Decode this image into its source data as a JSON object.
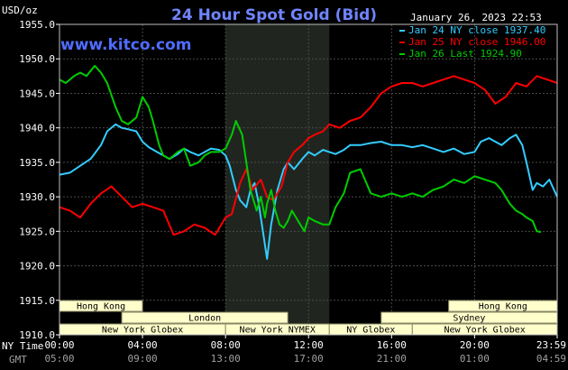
{
  "chart_data": {
    "type": "line",
    "title": "24 Hour Spot Gold (Bid)",
    "y_unit_label": "USD/oz",
    "date_label": "January 26, 2023 22:53",
    "watermark": "www.kitco.com",
    "ylim": [
      1910,
      1955
    ],
    "y_ticks": [
      "1955.0",
      "1950.0",
      "1945.0",
      "1940.0",
      "1935.0",
      "1930.0",
      "1925.0",
      "1920.0",
      "1915.0",
      "1910.0"
    ],
    "x_ticks_ny": [
      "00:00",
      "04:00",
      "08:00",
      "12:00",
      "16:00",
      "20:00",
      "23:59"
    ],
    "x_ticks_gmt": [
      "05:00",
      "09:00",
      "13:00",
      "17:00",
      "21:00",
      "01:00",
      "04:59"
    ],
    "x_label_ny": "NY Time",
    "x_label_gmt": "GMT",
    "highlight_window_hours": [
      8.0,
      13.0
    ],
    "sessions": [
      {
        "label": "Hong Kong",
        "start": 0.0,
        "end": 4.0,
        "row": 0
      },
      {
        "label": "Hong Kong",
        "start": 18.75,
        "end": 23.98,
        "row": 0
      },
      {
        "label": "London",
        "start": 3.0,
        "end": 11.0,
        "row": 1
      },
      {
        "label": "Sydney",
        "start": 15.5,
        "end": 23.98,
        "row": 1
      },
      {
        "label": "New York Globex",
        "start": 0.0,
        "end": 8.0,
        "row": 2
      },
      {
        "label": "New York NYMEX",
        "start": 8.0,
        "end": 13.0,
        "row": 2
      },
      {
        "label": "NY Globex",
        "start": 13.0,
        "end": 17.0,
        "row": 2
      },
      {
        "label": "New York Globex",
        "start": 17.0,
        "end": 23.98,
        "row": 2
      }
    ],
    "series": [
      {
        "name": "Jan 24 NY close 1937.40",
        "color": "#33ccff",
        "x": [
          0,
          0.5,
          1,
          1.5,
          2,
          2.3,
          2.7,
          3,
          3.3,
          3.7,
          4,
          4.3,
          4.7,
          5,
          5.3,
          5.7,
          6,
          6.3,
          6.7,
          7,
          7.3,
          7.7,
          8,
          8.2,
          8.5,
          8.7,
          9,
          9.2,
          9.4,
          9.6,
          9.8,
          10,
          10.2,
          10.5,
          10.8,
          11,
          11.3,
          11.7,
          12,
          12.3,
          12.7,
          13,
          13.3,
          13.7,
          14,
          14.5,
          15,
          15.5,
          16,
          16.5,
          17,
          17.5,
          18,
          18.5,
          19,
          19.5,
          20,
          20.3,
          20.7,
          21,
          21.3,
          21.7,
          22,
          22.3,
          22.5,
          22.8,
          23,
          23.3,
          23.6,
          23.98
        ],
        "y": [
          1933.2,
          1933.5,
          1934.5,
          1935.5,
          1937.5,
          1939.5,
          1940.5,
          1940.0,
          1939.8,
          1939.5,
          1938.0,
          1937.2,
          1936.5,
          1936.0,
          1935.5,
          1936.2,
          1937.0,
          1936.5,
          1936.0,
          1936.5,
          1937.0,
          1936.8,
          1936.0,
          1934.5,
          1931.0,
          1929.5,
          1928.5,
          1931.0,
          1932.0,
          1929.0,
          1925.0,
          1921.0,
          1926.0,
          1931.0,
          1934.0,
          1935.0,
          1934.0,
          1935.5,
          1936.5,
          1936.0,
          1936.8,
          1936.5,
          1936.2,
          1936.8,
          1937.5,
          1937.5,
          1937.8,
          1938.0,
          1937.5,
          1937.5,
          1937.2,
          1937.5,
          1937.0,
          1936.5,
          1937.0,
          1936.2,
          1936.5,
          1938.0,
          1938.5,
          1938.0,
          1937.5,
          1938.5,
          1939.0,
          1937.5,
          1935.0,
          1931.0,
          1932.0,
          1931.5,
          1932.5,
          1930.0
        ]
      },
      {
        "name": "Jan 25 NY close 1946.00",
        "color": "#ff0000",
        "x": [
          0,
          0.5,
          1,
          1.5,
          2,
          2.5,
          3,
          3.5,
          4,
          4.5,
          5,
          5.5,
          6,
          6.5,
          7,
          7.5,
          8,
          8.3,
          8.7,
          9,
          9.3,
          9.7,
          10,
          10.3,
          10.7,
          11,
          11.3,
          11.7,
          12,
          12.3,
          12.7,
          13,
          13.5,
          14,
          14.5,
          15,
          15.5,
          16,
          16.5,
          17,
          17.5,
          18,
          18.5,
          19,
          19.5,
          20,
          20.5,
          21,
          21.5,
          22,
          22.5,
          23,
          23.5,
          23.98
        ],
        "y": [
          1928.5,
          1928.0,
          1927.0,
          1929.0,
          1930.5,
          1931.5,
          1930.0,
          1928.5,
          1929.0,
          1928.5,
          1928.0,
          1924.5,
          1925.0,
          1926.0,
          1925.5,
          1924.5,
          1927.0,
          1927.5,
          1932.0,
          1934.0,
          1931.0,
          1932.5,
          1930.0,
          1929.5,
          1931.5,
          1935.0,
          1936.5,
          1937.5,
          1938.5,
          1939.0,
          1939.5,
          1940.5,
          1940.0,
          1941.0,
          1941.5,
          1943.0,
          1945.0,
          1946.0,
          1946.5,
          1946.5,
          1946.0,
          1946.5,
          1947.0,
          1947.5,
          1947.0,
          1946.5,
          1945.5,
          1943.5,
          1944.5,
          1946.5,
          1946.0,
          1947.5,
          1947.0,
          1946.5
        ]
      },
      {
        "name": "Jan 26 Last 1924.90",
        "color": "#00cc00",
        "x": [
          0,
          0.3,
          0.7,
          1,
          1.3,
          1.7,
          2,
          2.3,
          2.7,
          3,
          3.3,
          3.7,
          4,
          4.3,
          4.5,
          4.8,
          5,
          5.3,
          5.7,
          6,
          6.3,
          6.7,
          7,
          7.3,
          7.7,
          8,
          8.3,
          8.5,
          8.8,
          9,
          9.2,
          9.5,
          9.7,
          9.9,
          10,
          10.2,
          10.4,
          10.6,
          10.8,
          11,
          11.2,
          11.5,
          11.8,
          12,
          12.3,
          12.7,
          13,
          13.3,
          13.7,
          14,
          14.5,
          15,
          15.5,
          16,
          16.5,
          17,
          17.5,
          18,
          18.5,
          19,
          19.5,
          20,
          20.5,
          21,
          21.3,
          21.7,
          22,
          22.3,
          22.5,
          22.8,
          23,
          23.2
        ],
        "y": [
          1947.0,
          1946.5,
          1947.5,
          1948.0,
          1947.5,
          1949.0,
          1948.0,
          1946.5,
          1943.0,
          1941.0,
          1940.5,
          1941.5,
          1944.5,
          1943.0,
          1941.0,
          1937.5,
          1936.0,
          1935.5,
          1936.5,
          1937.0,
          1934.5,
          1935.0,
          1936.0,
          1936.5,
          1936.5,
          1937.0,
          1939.0,
          1941.0,
          1939.0,
          1935.0,
          1931.0,
          1928.0,
          1930.0,
          1927.0,
          1929.0,
          1931.0,
          1928.0,
          1926.0,
          1925.5,
          1926.5,
          1928.0,
          1926.5,
          1925.0,
          1927.0,
          1926.5,
          1926.0,
          1926.0,
          1928.5,
          1930.5,
          1933.5,
          1934.0,
          1930.5,
          1930.0,
          1930.5,
          1930.0,
          1930.5,
          1930.0,
          1931.0,
          1931.5,
          1932.5,
          1932.0,
          1933.0,
          1932.5,
          1932.0,
          1931.0,
          1929.0,
          1928.0,
          1927.5,
          1927.0,
          1926.5,
          1925.0,
          1924.9
        ]
      }
    ]
  }
}
